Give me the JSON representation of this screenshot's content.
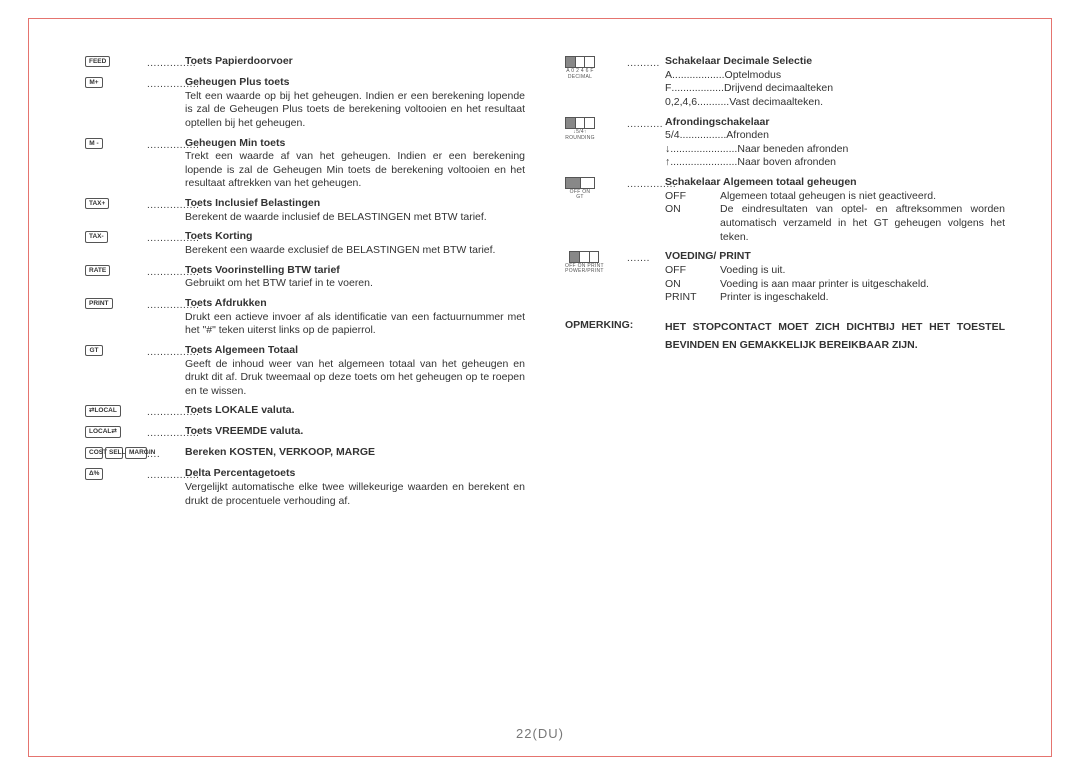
{
  "page_number": "22(DU)",
  "left": [
    {
      "icon": "FEED",
      "dots": "...............",
      "title": "Toets Papierdoorvoer",
      "desc": ""
    },
    {
      "icon": "M+",
      "dots": "................",
      "title": "Geheugen Plus toets",
      "desc": "Telt een waarde op bij het geheugen. Indien er een berekening lopende is zal de Geheugen Plus toets de berekening voltooien en het resultaat optellen bij het geheugen."
    },
    {
      "icon": "M -",
      "dots": "................",
      "title": "Geheugen Min toets",
      "desc": "Trekt een waarde af van het geheugen. Indien er een berekening lopende is zal de Geheugen Min toets de berekening voltooien en het resultaat aftrekken van het geheugen."
    },
    {
      "icon": "TAX+",
      "dots": "................",
      "title": "Toets Inclusief Belastingen",
      "desc": "Berekent de waarde inclusief de BELASTINGEN met BTW tarief."
    },
    {
      "icon": "TAX-",
      "dots": "................",
      "title": "Toets Korting",
      "desc": "Berekent een waarde exclusief de BELASTINGEN met BTW tarief."
    },
    {
      "icon": "RATE",
      "dots": "................",
      "title": "Toets Voorinstelling BTW tarief",
      "desc": "Gebruikt om het BTW tarief in te voeren."
    },
    {
      "icon": "PRINT",
      "dots": "................",
      "title": "Toets Afdrukken",
      "desc": "Drukt een actieve invoer af als identificatie van een factuurnummer met het \"#\" teken uiterst links op de papierrol."
    },
    {
      "icon": "GT",
      "dots": "................",
      "title": "Toets Algemeen Totaal",
      "desc": "Geeft de inhoud weer van het algemeen totaal van het geheugen en drukt dit af. Druk tweemaal op deze toets om het geheugen op te roepen en te wissen."
    },
    {
      "icon": "⇄LOCAL",
      "dots": "................",
      "title": "Toets LOKALE valuta.",
      "desc": ""
    },
    {
      "icon": "LOCAL⇄",
      "dots": "................",
      "title": "Toets VREEMDE valuta.",
      "desc": ""
    },
    {
      "icons": [
        "COST",
        "SELL",
        "MARGIN"
      ],
      "dots": "....",
      "title": "Bereken KOSTEN, VERKOOP, MARGE",
      "desc": ""
    },
    {
      "icon": "Δ%",
      "dots": "................",
      "title": "Delta Percentagetoets",
      "desc": "Vergelijkt automatische elke twee willekeurige waarden en berekent en drukt de procentuele verhouding af."
    }
  ],
  "right": [
    {
      "switch": true,
      "sub": "A 0 2 4 6 F",
      "sub2": "DECIMAL",
      "dots": "..........",
      "title": "Schakelaar Decimale Selectie",
      "defs": [
        {
          "k": "A",
          "dots": " ..................",
          "v": " Optelmodus"
        },
        {
          "k": "F",
          "dots": " ..................",
          "v": " Drijvend decimaalteken"
        },
        {
          "k": "0,2,4,6",
          "dots": " ...........",
          "v": "Vast decimaalteken."
        }
      ]
    },
    {
      "switch": true,
      "sub": "↓5/4↑",
      "sub2": "ROUNDING",
      "dots": "...........",
      "title": "Afrondingschakelaar",
      "defs": [
        {
          "k": "5/4",
          "dots": " ...............",
          "v": " .Afronden"
        },
        {
          "k": "↓",
          "dots": ".......................",
          "v": " Naar beneden afronden"
        },
        {
          "k": "↑",
          "dots": ".......................",
          "v": " Naar boven afronden"
        }
      ]
    },
    {
      "switch": true,
      "sub": "",
      "sub2": "OFF ON\nGT",
      "slots": 2,
      "dots": "...............",
      "title": "Schakelaar Algemeen totaal geheugen",
      "tdefs": [
        {
          "k": "OFF",
          "v": "Algemeen totaal geheugen is niet geactiveerd."
        },
        {
          "k": "ON",
          "v": "De eindresultaten van optel- en aftreksommen worden automatisch verzameld in het GT geheugen volgens het teken."
        }
      ]
    },
    {
      "switch": true,
      "sub": "",
      "sub2": "OFF ON PRINT\nPOWER/PRINT",
      "slots": 3,
      "dots": ".......",
      "title": "VOEDING/ PRINT",
      "tdefs": [
        {
          "k": "OFF",
          "v": "Voeding is uit."
        },
        {
          "k": "ON",
          "v": "Voeding is aan maar printer is uitgeschakeld."
        },
        {
          "k": "PRINT",
          "v": "Printer is ingeschakeld."
        }
      ]
    }
  ],
  "opmerking_label": "OPMERKING:",
  "opmerking_text": "HET STOPCONTACT MOET ZICH DICHTBIJ HET HET TOESTEL BEVINDEN EN GEMAKKELIJK BEREIKBAAR ZIJN."
}
